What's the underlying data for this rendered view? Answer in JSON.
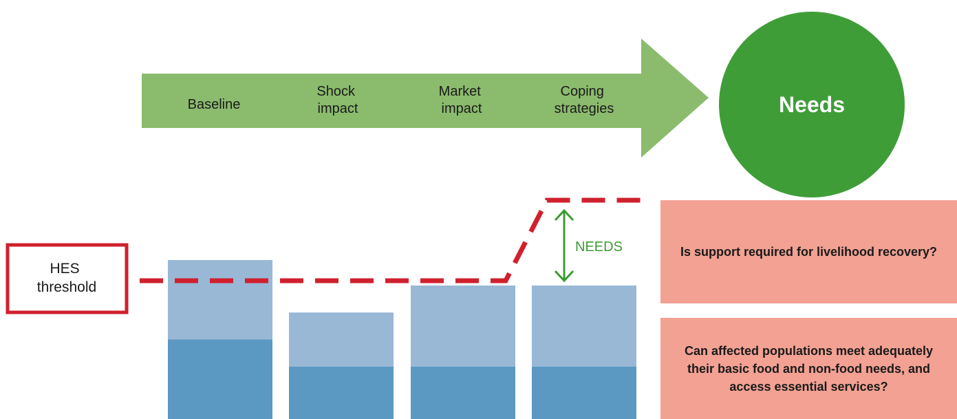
{
  "process_arrow": {
    "color": "#8bbb6d",
    "steps": [
      {
        "lines": [
          "Baseline"
        ]
      },
      {
        "lines": [
          "Shock",
          "impact"
        ]
      },
      {
        "lines": [
          "Market",
          "impact"
        ]
      },
      {
        "lines": [
          "Coping",
          "strategies"
        ]
      }
    ]
  },
  "outcome_circle": {
    "label": "Needs",
    "color": "#3f9d38"
  },
  "threshold_box": {
    "lines": [
      "HES",
      "threshold"
    ],
    "border_color": "#d0202e"
  },
  "threshold_line": {
    "color": "#d0202e",
    "style": "dashed"
  },
  "needs_gap": {
    "label": "NEEDS",
    "color": "#3c9b33"
  },
  "bars": {
    "top_color": "#98b8d6",
    "bottom_color": "#5b98c2",
    "items": [
      {
        "total": 1.0,
        "base": 0.5
      },
      {
        "total": 0.67,
        "base": 0.33
      },
      {
        "total": 0.84,
        "base": 0.33
      },
      {
        "total": 0.84,
        "base": 0.33
      }
    ]
  },
  "questions": [
    {
      "text": "Is support required for livelihood recovery?"
    },
    {
      "text": "Can affected populations meet adequately their basic food and non-food needs, and access essential services?"
    }
  ],
  "question_color": "#f2a193"
}
